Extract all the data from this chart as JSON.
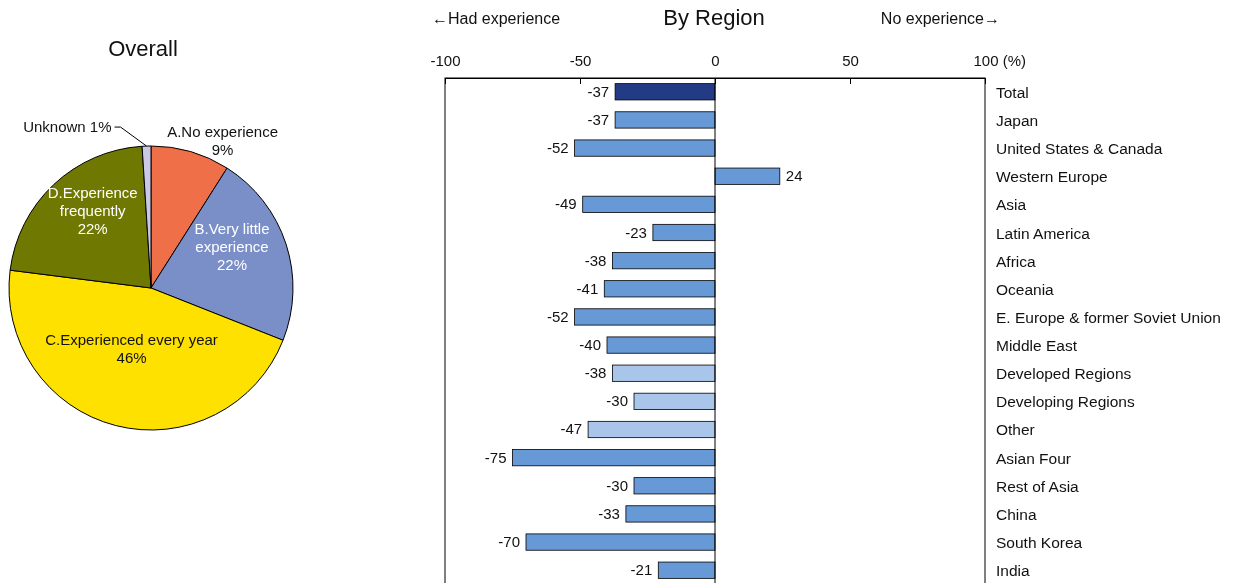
{
  "chart_data": [
    {
      "type": "pie",
      "title": "Overall",
      "categories": [
        "A.No experience",
        "B.Very little experience",
        "C.Experienced every year",
        "D.Experience frequently",
        "Unknown"
      ],
      "values": [
        9,
        22,
        46,
        22,
        1
      ],
      "value_labels": [
        "9%",
        "22%",
        "46%",
        "22%",
        "1%"
      ],
      "colors": [
        "#ef6f49",
        "#7a8ec8",
        "#ffe100",
        "#6f7800",
        "#c9c9e6"
      ]
    },
    {
      "type": "bar",
      "orientation": "horizontal",
      "title": "By Region",
      "annotations": [
        "←Had experience",
        "No experience→"
      ],
      "categories": [
        "Total",
        "Japan",
        "United States & Canada",
        "Western Europe",
        "Asia",
        "Latin America",
        "Africa",
        "Oceania",
        "E. Europe & former Soviet Union",
        "Middle East",
        "Developed Regions",
        "Developing Regions",
        "Other",
        "Asian Four",
        "Rest of Asia",
        "China",
        "South Korea",
        "India"
      ],
      "values": [
        -37,
        -37,
        -52,
        24,
        -49,
        -23,
        -38,
        -41,
        -52,
        -40,
        -38,
        -30,
        -47,
        -75,
        -30,
        -33,
        -70,
        -21
      ],
      "colors": [
        "#233a84",
        "#6699d6",
        "#6699d6",
        "#6699d6",
        "#6699d6",
        "#6699d6",
        "#6699d6",
        "#6699d6",
        "#6699d6",
        "#6699d6",
        "#a9c5ea",
        "#a9c5ea",
        "#a9c5ea",
        "#6699d6",
        "#6699d6",
        "#6699d6",
        "#6699d6",
        "#6699d6"
      ],
      "xlim": [
        -100,
        100
      ],
      "xticks": [
        -100,
        -50,
        0,
        50,
        {
          "value": 100,
          "label": "100 (%)"
        }
      ],
      "data_labels": true
    }
  ]
}
